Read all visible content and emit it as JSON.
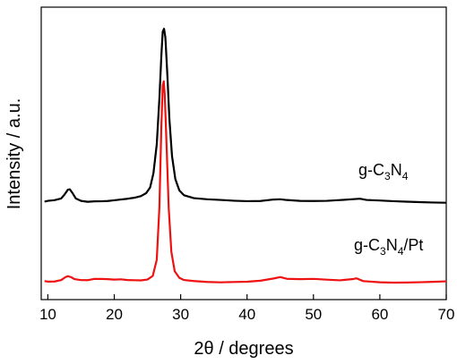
{
  "chart_data": {
    "type": "line",
    "title": "",
    "xlabel": "2θ / degrees",
    "ylabel": "Intensity / a.u.",
    "xlim": [
      9,
      70
    ],
    "ylim": [
      0,
      10
    ],
    "xticks": [
      10,
      20,
      30,
      40,
      50,
      60,
      70
    ],
    "x_tick_labels": [
      "10",
      "20",
      "30",
      "40",
      "50",
      "60",
      "70"
    ],
    "y_tick_labels_shown": false,
    "grid": false,
    "legend": "none (series labeled inline at right)",
    "colors": {
      "g-C3N4": "#000000",
      "g-C3N4/Pt": "#ee1111"
    },
    "series": [
      {
        "name": "g-C3N4",
        "label_parts": [
          "g-C",
          "3",
          "N",
          "4"
        ],
        "color": "#000000",
        "points": [
          [
            9.5,
            3.35
          ],
          [
            10,
            3.36
          ],
          [
            11,
            3.37
          ],
          [
            12,
            3.42
          ],
          [
            12.5,
            3.55
          ],
          [
            13,
            3.72
          ],
          [
            13.3,
            3.75
          ],
          [
            13.7,
            3.64
          ],
          [
            14.2,
            3.47
          ],
          [
            15,
            3.4
          ],
          [
            16,
            3.38
          ],
          [
            17,
            3.4
          ],
          [
            18,
            3.4
          ],
          [
            19,
            3.4
          ],
          [
            20,
            3.41
          ],
          [
            21,
            3.42
          ],
          [
            22,
            3.43
          ],
          [
            23,
            3.45
          ],
          [
            24,
            3.5
          ],
          [
            24.8,
            3.6
          ],
          [
            25.4,
            3.8
          ],
          [
            25.9,
            4.3
          ],
          [
            26.4,
            5.3
          ],
          [
            26.8,
            6.9
          ],
          [
            27.1,
            8.4
          ],
          [
            27.3,
            9.2
          ],
          [
            27.5,
            9.3
          ],
          [
            27.7,
            9.0
          ],
          [
            28.0,
            7.7
          ],
          [
            28.3,
            6.2
          ],
          [
            28.7,
            4.9
          ],
          [
            29.2,
            4.1
          ],
          [
            29.8,
            3.7
          ],
          [
            30.5,
            3.53
          ],
          [
            32,
            3.43
          ],
          [
            34,
            3.4
          ],
          [
            36,
            3.39
          ],
          [
            38,
            3.38
          ],
          [
            40,
            3.38
          ],
          [
            42,
            3.4
          ],
          [
            44,
            3.46
          ],
          [
            45,
            3.47
          ],
          [
            46,
            3.44
          ],
          [
            48,
            3.4
          ],
          [
            50,
            3.38
          ],
          [
            52,
            3.37
          ],
          [
            54,
            3.38
          ],
          [
            56,
            3.4
          ],
          [
            57,
            3.41
          ],
          [
            58,
            3.37
          ],
          [
            60,
            3.36
          ],
          [
            62,
            3.35
          ],
          [
            64,
            3.35
          ],
          [
            66,
            3.35
          ],
          [
            68,
            3.35
          ],
          [
            70,
            3.35
          ]
        ]
      },
      {
        "name": "g-C3N4/Pt",
        "label_parts": [
          "g-C",
          "3",
          "N",
          "4",
          "/Pt"
        ],
        "color": "#ee1111",
        "points": [
          [
            9.5,
            0.62
          ],
          [
            10,
            0.62
          ],
          [
            11,
            0.64
          ],
          [
            12,
            0.7
          ],
          [
            12.6,
            0.8
          ],
          [
            13,
            0.84
          ],
          [
            13.5,
            0.8
          ],
          [
            14,
            0.72
          ],
          [
            15,
            0.67
          ],
          [
            16,
            0.65
          ],
          [
            17,
            0.68
          ],
          [
            18,
            0.67
          ],
          [
            19,
            0.66
          ],
          [
            20,
            0.65
          ],
          [
            21,
            0.67
          ],
          [
            22,
            0.66
          ],
          [
            23,
            0.67
          ],
          [
            24,
            0.68
          ],
          [
            25,
            0.72
          ],
          [
            25.8,
            0.85
          ],
          [
            26.4,
            1.4
          ],
          [
            26.8,
            3.2
          ],
          [
            27.1,
            6.0
          ],
          [
            27.3,
            7.3
          ],
          [
            27.45,
            7.45
          ],
          [
            27.6,
            7.0
          ],
          [
            27.9,
            5.1
          ],
          [
            28.2,
            3.1
          ],
          [
            28.6,
            1.6
          ],
          [
            29.1,
            0.95
          ],
          [
            29.8,
            0.74
          ],
          [
            30.5,
            0.68
          ],
          [
            32,
            0.66
          ],
          [
            34,
            0.64
          ],
          [
            36,
            0.63
          ],
          [
            38,
            0.64
          ],
          [
            40,
            0.64
          ],
          [
            42,
            0.66
          ],
          [
            44,
            0.72
          ],
          [
            45,
            0.75
          ],
          [
            46,
            0.68
          ],
          [
            48,
            0.66
          ],
          [
            50,
            0.67
          ],
          [
            52,
            0.65
          ],
          [
            54,
            0.64
          ],
          [
            56,
            0.7
          ],
          [
            56.5,
            0.74
          ],
          [
            57.5,
            0.66
          ],
          [
            60,
            0.63
          ],
          [
            62,
            0.62
          ],
          [
            64,
            0.62
          ],
          [
            66,
            0.62
          ],
          [
            68,
            0.62
          ],
          [
            70,
            0.62
          ]
        ]
      }
    ]
  }
}
